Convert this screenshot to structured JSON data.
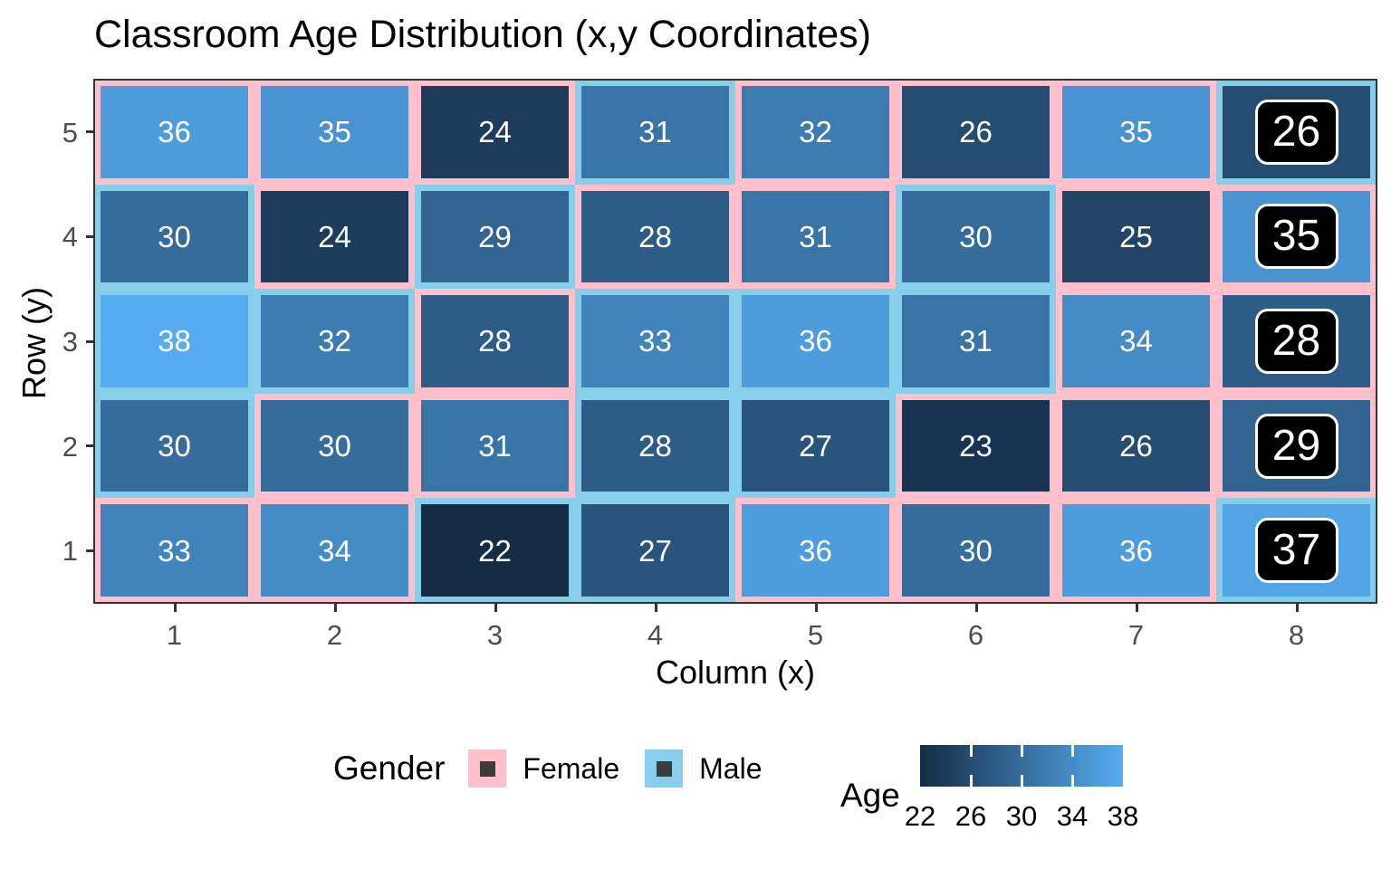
{
  "title": "Classroom Age Distribution (x,y Coordinates)",
  "chart_data": {
    "type": "heatmap",
    "title": "Classroom Age Distribution (x,y Coordinates)",
    "xlabel": "Column (x)",
    "ylabel": "Row (y)",
    "x_ticks": [
      "1",
      "2",
      "3",
      "4",
      "5",
      "6",
      "7",
      "8"
    ],
    "y_ticks": [
      "5",
      "4",
      "3",
      "2",
      "1"
    ],
    "grid": {
      "columns": 8,
      "rows": 5,
      "row_order_top_to_bottom": [
        5,
        4,
        3,
        2,
        1
      ],
      "cells_by_row": [
        {
          "y": 5,
          "ages": [
            36,
            35,
            24,
            31,
            32,
            26,
            35,
            26
          ],
          "genders": [
            "Female",
            "Female",
            "Female",
            "Male",
            "Female",
            "Female",
            "Female",
            "Male"
          ]
        },
        {
          "y": 4,
          "ages": [
            30,
            24,
            29,
            28,
            31,
            30,
            25,
            35
          ],
          "genders": [
            "Male",
            "Female",
            "Male",
            "Female",
            "Female",
            "Male",
            "Female",
            "Female"
          ]
        },
        {
          "y": 3,
          "ages": [
            38,
            32,
            28,
            33,
            36,
            31,
            34,
            28
          ],
          "genders": [
            "Male",
            "Male",
            "Female",
            "Male",
            "Male",
            "Male",
            "Female",
            "Female"
          ]
        },
        {
          "y": 2,
          "ages": [
            30,
            30,
            31,
            28,
            27,
            23,
            26,
            29
          ],
          "genders": [
            "Male",
            "Female",
            "Female",
            "Male",
            "Male",
            "Female",
            "Female",
            "Female"
          ]
        },
        {
          "y": 1,
          "ages": [
            33,
            34,
            22,
            27,
            36,
            30,
            36,
            37
          ],
          "genders": [
            "Female",
            "Female",
            "Male",
            "Male",
            "Female",
            "Female",
            "Female",
            "Male"
          ]
        }
      ],
      "highlight_column": 8,
      "highlight_style": "black-rounded-badge"
    },
    "legend": {
      "gender": {
        "title": "Gender",
        "items": [
          {
            "label": "Female",
            "color": "#FFC0CB"
          },
          {
            "label": "Male",
            "color": "#87CEEB"
          }
        ]
      },
      "age": {
        "title": "Age",
        "ticks": [
          "22",
          "26",
          "30",
          "34",
          "38"
        ],
        "min": 22,
        "max": 38,
        "low_color": "#152C47",
        "high_color": "#55ACF0"
      }
    },
    "colors": {
      "female_border": "#FFC0CB",
      "male_border": "#87CEEB",
      "cell_text": "#FFFFFF",
      "badge_bg": "#000000",
      "badge_border": "#FFFFFF",
      "axis_text": "#4D4D4D",
      "tick_mark": "#333333",
      "panel_border": "#333333"
    }
  }
}
